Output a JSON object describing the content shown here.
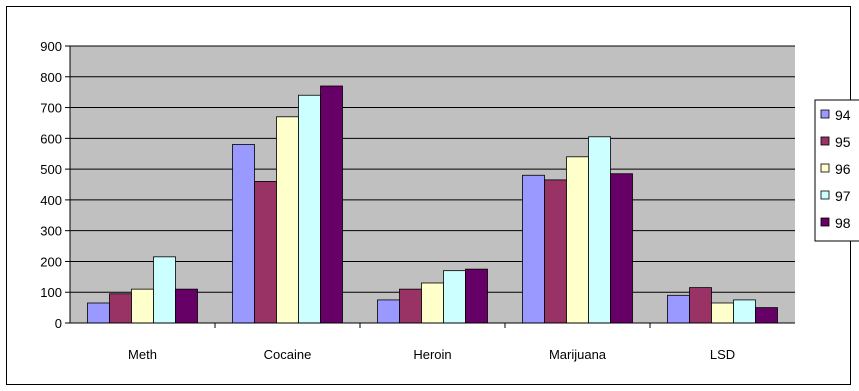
{
  "chart_data": {
    "type": "bar",
    "categories": [
      "Meth",
      "Cocaine",
      "Heroin",
      "Marijuana",
      "LSD"
    ],
    "series": [
      {
        "name": "94",
        "color": "#9999FF",
        "values": [
          65,
          580,
          75,
          480,
          90
        ]
      },
      {
        "name": "95",
        "color": "#993366",
        "values": [
          95,
          460,
          110,
          465,
          115
        ]
      },
      {
        "name": "96",
        "color": "#FFFFCC",
        "values": [
          110,
          670,
          130,
          540,
          65
        ]
      },
      {
        "name": "97",
        "color": "#CCFFFF",
        "values": [
          215,
          740,
          170,
          605,
          75
        ]
      },
      {
        "name": "98",
        "color": "#660066",
        "values": [
          110,
          770,
          175,
          485,
          50
        ]
      }
    ],
    "title": "",
    "xlabel": "",
    "ylabel": "",
    "ylim": [
      0,
      900
    ],
    "yticks": [
      0,
      100,
      200,
      300,
      400,
      500,
      600,
      700,
      800,
      900
    ],
    "grid": true,
    "legend_position": "right",
    "plot_background": "#C0C0C0"
  }
}
